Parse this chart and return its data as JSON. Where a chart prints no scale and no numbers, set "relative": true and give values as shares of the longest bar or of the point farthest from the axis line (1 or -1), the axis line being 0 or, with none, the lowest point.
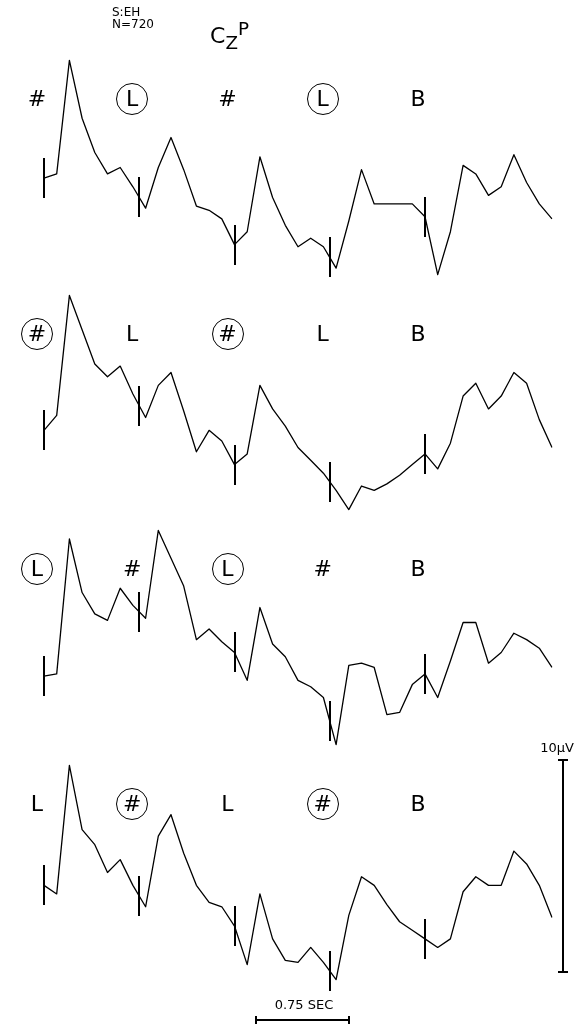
{
  "chart_data": [
    {
      "type": "line",
      "title": "C$_{Z}$$^{P}$",
      "subtitle": "S:EH\nN=720",
      "relative": true,
      "tick_labels": false,
      "marker": "none",
      "line_style": "solid",
      "annotations": [
        "#",
        "L⃝",
        "#",
        "L⃝",
        "B"
      ],
      "categories": [
        null,
        null,
        null,
        null,
        null,
        null,
        null,
        null,
        null,
        null,
        null,
        null,
        null,
        null,
        null,
        null,
        null,
        null,
        null,
        null,
        null,
        null,
        null,
        null,
        null,
        null,
        null,
        null,
        null,
        null,
        null,
        null,
        null,
        null,
        null,
        null,
        null,
        null,
        null,
        null,
        null
      ],
      "series": [
        {
          "color": "#000000",
          "values": [
            0.45,
            0.47,
            1.0,
            0.73,
            0.57,
            0.47,
            0.5,
            0.41,
            0.31,
            0.5,
            0.64,
            0.49,
            0.32,
            0.3,
            0.26,
            0.14,
            0.2,
            0.55,
            0.36,
            0.23,
            0.13,
            0.17,
            0.13,
            0.03,
            0.25,
            0.49,
            0.33,
            0.33,
            0.33,
            0.33,
            0.27,
            0.0,
            0.2,
            0.51,
            0.47,
            0.37,
            0.41,
            0.56,
            0.43,
            0.33,
            0.26
          ]
        }
      ]
    },
    {
      "type": "line",
      "relative": true,
      "tick_labels": false,
      "marker": "none",
      "line_style": "solid",
      "annotations": [
        "#⃝",
        "L",
        "#⃝",
        "L",
        "B"
      ],
      "categories": [
        null,
        null,
        null,
        null,
        null,
        null,
        null,
        null,
        null,
        null,
        null,
        null,
        null,
        null,
        null,
        null,
        null,
        null,
        null,
        null,
        null,
        null,
        null,
        null,
        null,
        null,
        null,
        null,
        null,
        null,
        null,
        null,
        null,
        null,
        null,
        null,
        null,
        null,
        null,
        null,
        null
      ],
      "series": [
        {
          "color": "#000000",
          "values": [
            0.37,
            0.44,
            1.0,
            0.84,
            0.68,
            0.62,
            0.67,
            0.54,
            0.43,
            0.58,
            0.64,
            0.46,
            0.27,
            0.37,
            0.32,
            0.21,
            0.26,
            0.58,
            0.47,
            0.39,
            0.29,
            0.23,
            0.17,
            0.09,
            0.0,
            0.11,
            0.09,
            0.12,
            0.16,
            0.21,
            0.26,
            0.19,
            0.31,
            0.53,
            0.59,
            0.47,
            0.53,
            0.64,
            0.59,
            0.42,
            0.29
          ]
        }
      ]
    },
    {
      "type": "line",
      "relative": true,
      "tick_labels": false,
      "marker": "none",
      "line_style": "solid",
      "annotations": [
        "L⃝",
        "#",
        "L⃝",
        "#",
        "B"
      ],
      "categories": [
        null,
        null,
        null,
        null,
        null,
        null,
        null,
        null,
        null,
        null,
        null,
        null,
        null,
        null,
        null,
        null,
        null,
        null,
        null,
        null,
        null,
        null,
        null,
        null,
        null,
        null,
        null,
        null,
        null,
        null,
        null,
        null,
        null,
        null,
        null,
        null,
        null,
        null,
        null,
        null,
        null
      ],
      "series": [
        {
          "color": "#000000",
          "values": [
            0.32,
            0.33,
            0.96,
            0.71,
            0.61,
            0.58,
            0.73,
            0.65,
            0.59,
            1.0,
            0.87,
            0.74,
            0.49,
            0.54,
            0.48,
            0.43,
            0.3,
            0.64,
            0.47,
            0.41,
            0.3,
            0.27,
            0.22,
            0.0,
            0.37,
            0.38,
            0.36,
            0.14,
            0.15,
            0.28,
            0.33,
            0.22,
            0.39,
            0.57,
            0.57,
            0.38,
            0.43,
            0.52,
            0.49,
            0.45,
            0.36
          ]
        }
      ]
    },
    {
      "type": "line",
      "xlabel": "0.75 SEC",
      "ylabel": "10µV",
      "relative": true,
      "tick_labels": false,
      "marker": "none",
      "line_style": "solid",
      "annotations": [
        "L",
        "#⃝",
        "L",
        "#⃝",
        "B"
      ],
      "categories": [
        null,
        null,
        null,
        null,
        null,
        null,
        null,
        null,
        null,
        null,
        null,
        null,
        null,
        null,
        null,
        null,
        null,
        null,
        null,
        null,
        null,
        null,
        null,
        null,
        null,
        null,
        null,
        null,
        null,
        null,
        null,
        null,
        null,
        null,
        null,
        null,
        null,
        null,
        null,
        null,
        null
      ],
      "series": [
        {
          "color": "#000000",
          "values": [
            0.44,
            0.4,
            1.0,
            0.7,
            0.63,
            0.5,
            0.56,
            0.44,
            0.34,
            0.67,
            0.77,
            0.59,
            0.44,
            0.36,
            0.34,
            0.25,
            0.07,
            0.4,
            0.19,
            0.09,
            0.08,
            0.15,
            0.08,
            0.0,
            0.3,
            0.48,
            0.44,
            0.35,
            0.27,
            0.23,
            0.19,
            0.15,
            0.19,
            0.41,
            0.48,
            0.44,
            0.44,
            0.6,
            0.54,
            0.44,
            0.29
          ]
        }
      ]
    }
  ]
}
